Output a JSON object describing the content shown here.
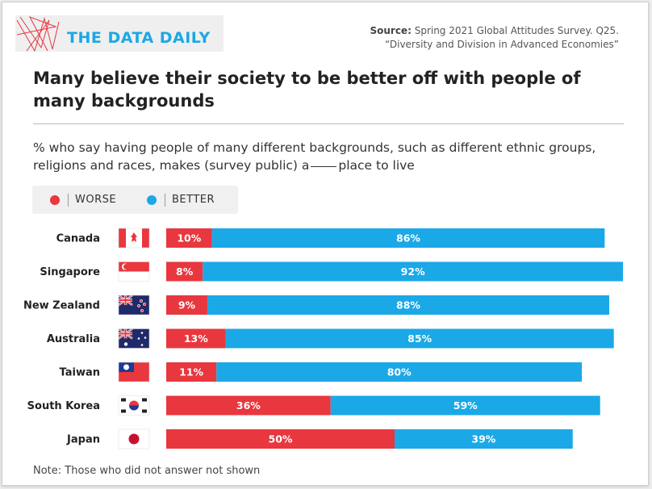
{
  "brand": "THE DATA DAILY",
  "source": {
    "label": "Source:",
    "lines": [
      "Spring 2021 Global Attitudes Survey. Q25.",
      "“Diversity and Division in Advanced Economies”"
    ]
  },
  "note": "Note: Those who did not answer not shown",
  "chart_data": {
    "type": "stacked-barh",
    "title": "Many believe their society to be better off with people of many backgrounds",
    "subtitle": [
      "% who say having people of many different backgrounds, such as different ethnic groups, religions and races, makes (survey public) a",
      "place to live"
    ],
    "categories": [
      "Canada",
      "Singapore",
      "New Zealand",
      "Australia",
      "Taiwan",
      "South Korea",
      "Japan"
    ],
    "xlim": [
      0,
      100
    ],
    "series": [
      {
        "name": "WORSE",
        "color": "#e8373e",
        "values": [
          10,
          8,
          9,
          13,
          11,
          36,
          50
        ],
        "value_labels": [
          "10%",
          "8%",
          "9%",
          "13%",
          "11%",
          "36%",
          "50%"
        ]
      },
      {
        "name": "BETTER",
        "color": "#1ba8e6",
        "values": [
          86,
          92,
          88,
          85,
          80,
          59,
          39
        ],
        "value_labels": [
          "86%",
          "92%",
          "88%",
          "85%",
          "80%",
          "59%",
          "39%"
        ]
      }
    ]
  }
}
